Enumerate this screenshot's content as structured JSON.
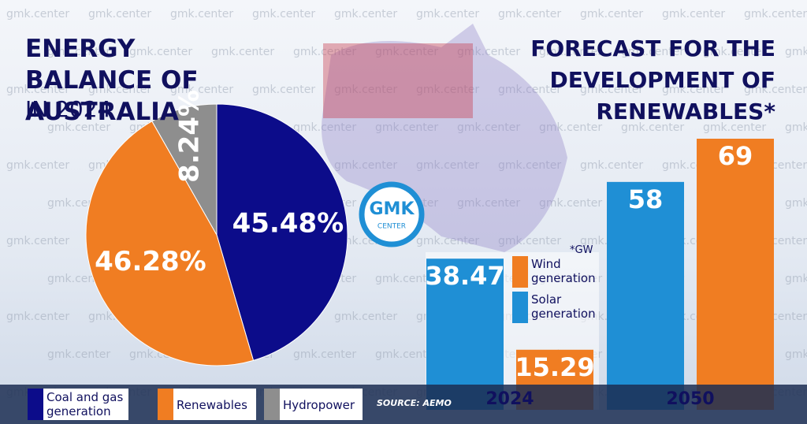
{
  "watermark": "gmk.center",
  "logo": {
    "name": "GMK",
    "sub": "CENTER"
  },
  "source": "SOURCE: AEMO",
  "chart_data": [
    {
      "type": "pie",
      "title": "ENERGY BALANCE OF AUSTRALIA",
      "subtitle": "IN 2024",
      "categories": [
        "Coal and gas generation",
        "Renewables",
        "Hydropower"
      ],
      "values": [
        45.48,
        46.28,
        8.24
      ],
      "value_labels": [
        "45.48%",
        "46.28%",
        "8.24%"
      ],
      "colors": [
        "#0c0c8a",
        "#f07d22",
        "#8e8e8e"
      ]
    },
    {
      "type": "bar",
      "title": "FORECAST FOR THE DEVELOPMENT OF RENEWABLES*",
      "note": "*GW",
      "categories": [
        "2024",
        "2050"
      ],
      "series": [
        {
          "name": "Solar generation",
          "color": "#1f8fd5",
          "values": [
            38.47,
            58
          ]
        },
        {
          "name": "Wind generation",
          "color": "#f07d22",
          "values": [
            15.29,
            69
          ]
        }
      ],
      "ylim": [
        0,
        69
      ]
    }
  ]
}
